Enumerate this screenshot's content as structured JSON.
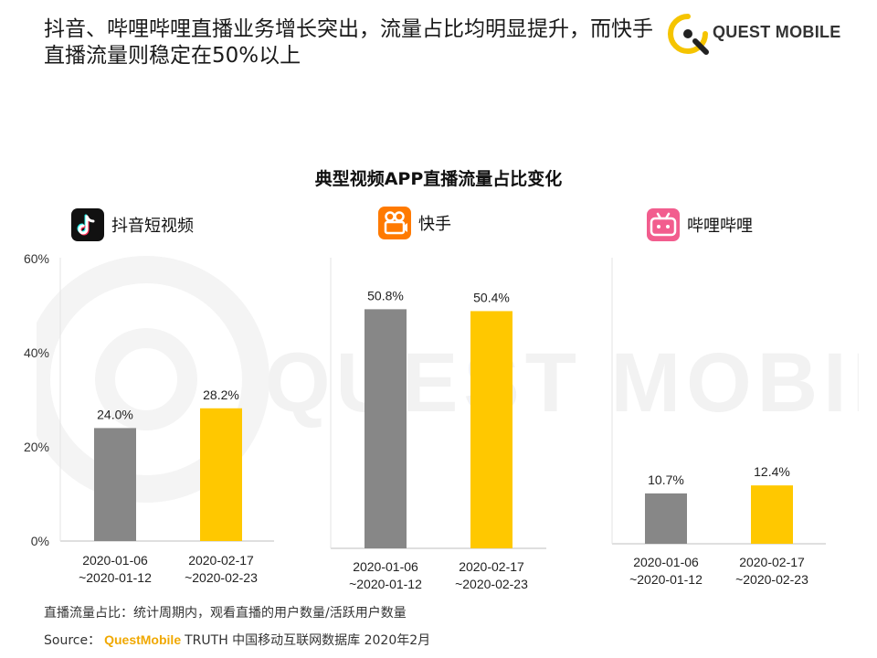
{
  "headline": "抖音、哔哩哔哩直播业务增长突出，流量占比均明显提升，而快手直播流量则稳定在50%以上",
  "brand": {
    "name": "QUEST MOBILE",
    "icon": "quest-mobile-logo-icon",
    "accent": "#f5c400"
  },
  "watermark": "QUEST MOBILE",
  "colors": {
    "period1": "#878787",
    "period2": "#ffc800"
  },
  "chart_data": {
    "type": "bar",
    "title": "典型视频APP直播流量占比变化",
    "unit": "%",
    "ylim": [
      0,
      60
    ],
    "y_ticks": [
      "0%",
      "20%",
      "40%",
      "60%"
    ],
    "categories": [
      "2020-01-06\n~2020-01-12",
      "2020-02-17\n~2020-02-23"
    ],
    "panels": [
      {
        "app": "抖音短视频",
        "icon": "douyin-icon",
        "values": [
          24.0,
          28.2
        ],
        "labels": [
          "24.0%",
          "28.2%"
        ]
      },
      {
        "app": "快手",
        "icon": "kuaishou-icon",
        "values": [
          50.8,
          50.4
        ],
        "labels": [
          "50.8%",
          "50.4%"
        ]
      },
      {
        "app": "哔哩哔哩",
        "icon": "bilibili-icon",
        "values": [
          10.7,
          12.4
        ],
        "labels": [
          "10.7%",
          "12.4%"
        ]
      }
    ]
  },
  "footnote": "直播流量占比：统计周期内，观看直播的用户数量/活跃用户数量",
  "source": {
    "prefix": "Source：",
    "brand": "QuestMobile",
    "suffix": "TRUTH 中国移动互联网数据库 2020年2月"
  }
}
